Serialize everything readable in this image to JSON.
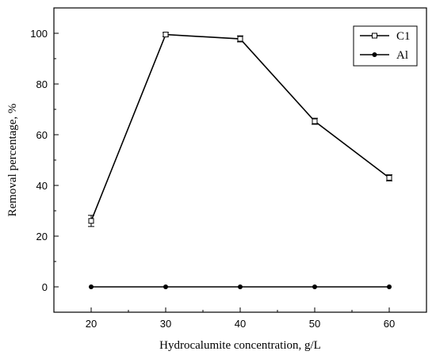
{
  "chart_data": {
    "type": "line",
    "title": "",
    "xlabel": "Hydrocalumite concentration, g/L",
    "ylabel": "Removal percentage, %",
    "x": [
      20,
      30,
      40,
      50,
      60
    ],
    "xlim": [
      15,
      65
    ],
    "ylim": [
      -10,
      110
    ],
    "xticks": [
      20,
      30,
      40,
      50,
      60
    ],
    "yticks": [
      0,
      20,
      40,
      60,
      80,
      100
    ],
    "legend_position": "top-right",
    "series": [
      {
        "name": "C1",
        "marker": "open-square",
        "values": [
          26,
          99.5,
          97.8,
          65.3,
          43
        ],
        "errors": [
          2.2,
          0.8,
          1.2,
          1.2,
          1.2
        ]
      },
      {
        "name": "Al",
        "marker": "filled-circle",
        "values": [
          0,
          0,
          0,
          0,
          0
        ],
        "errors": [
          0,
          0,
          0,
          0,
          0
        ]
      }
    ]
  }
}
